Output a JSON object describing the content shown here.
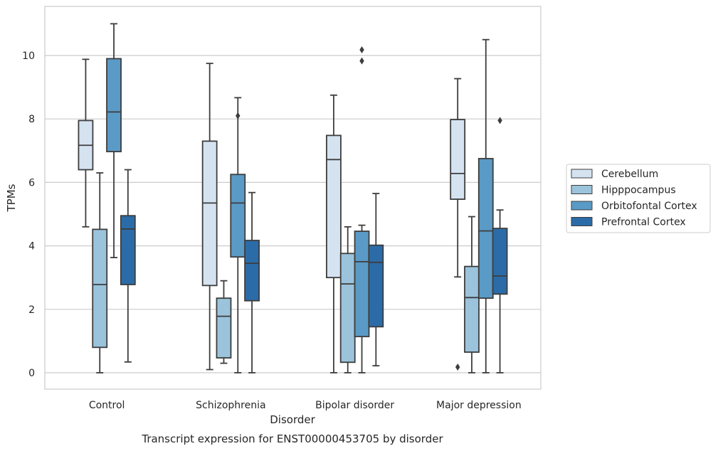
{
  "chart_data": {
    "type": "box",
    "title": "",
    "caption": "Transcript expression for ENST00000453705 by disorder",
    "xlabel": "Disorder",
    "ylabel": "TPMs",
    "ylim": [
      -0.5,
      11.5
    ],
    "yticks": [
      0,
      2,
      4,
      6,
      8,
      10
    ],
    "grid": "horizontal",
    "legend_position": "right",
    "categories": [
      "Control",
      "Schizophrenia",
      "Bipolar disorder",
      "Major depression"
    ],
    "series": [
      {
        "name": "Cerebellum",
        "color": "#d5e3f1",
        "boxes": [
          {
            "whislo": 4.6,
            "q1": 6.4,
            "med": 7.17,
            "q3": 7.95,
            "whishi": 9.88,
            "fliers": []
          },
          {
            "whislo": 0.1,
            "q1": 2.75,
            "med": 5.35,
            "q3": 7.3,
            "whishi": 9.75,
            "fliers": []
          },
          {
            "whislo": 0.0,
            "q1": 3.0,
            "med": 6.72,
            "q3": 7.48,
            "whishi": 8.75,
            "fliers": []
          },
          {
            "whislo": 3.02,
            "q1": 5.47,
            "med": 6.28,
            "q3": 7.98,
            "whishi": 9.27,
            "fliers": [
              0.18
            ]
          }
        ]
      },
      {
        "name": "Hipppocampus",
        "color": "#9bc3dc",
        "boxes": [
          {
            "whislo": 0.0,
            "q1": 0.8,
            "med": 2.78,
            "q3": 4.52,
            "whishi": 6.3,
            "fliers": []
          },
          {
            "whislo": 0.3,
            "q1": 0.47,
            "med": 1.78,
            "q3": 2.35,
            "whishi": 2.9,
            "fliers": []
          },
          {
            "whislo": 0.0,
            "q1": 0.33,
            "med": 2.8,
            "q3": 3.76,
            "whishi": 4.6,
            "fliers": []
          },
          {
            "whislo": 0.0,
            "q1": 0.65,
            "med": 2.37,
            "q3": 3.35,
            "whishi": 4.92,
            "fliers": []
          }
        ]
      },
      {
        "name": "Orbitofontal Cortex",
        "color": "#5a9ac6",
        "boxes": [
          {
            "whislo": 3.63,
            "q1": 6.97,
            "med": 8.22,
            "q3": 9.9,
            "whishi": 11.0,
            "fliers": []
          },
          {
            "whislo": 0.0,
            "q1": 3.65,
            "med": 5.35,
            "q3": 6.25,
            "whishi": 8.67,
            "fliers": [
              8.1
            ]
          },
          {
            "whislo": 0.0,
            "q1": 1.14,
            "med": 3.5,
            "q3": 4.46,
            "whishi": 4.65,
            "fliers": [
              9.83,
              10.18
            ]
          },
          {
            "whislo": 0.0,
            "q1": 2.35,
            "med": 4.47,
            "q3": 6.75,
            "whishi": 10.5,
            "fliers": []
          }
        ]
      },
      {
        "name": "Prefrontal Cortex",
        "color": "#2b6ca8",
        "boxes": [
          {
            "whislo": 0.34,
            "q1": 2.78,
            "med": 4.53,
            "q3": 4.95,
            "whishi": 6.4,
            "fliers": []
          },
          {
            "whislo": 0.0,
            "q1": 2.27,
            "med": 3.45,
            "q3": 4.17,
            "whishi": 5.68,
            "fliers": []
          },
          {
            "whislo": 0.22,
            "q1": 1.45,
            "med": 3.48,
            "q3": 4.02,
            "whishi": 5.65,
            "fliers": []
          },
          {
            "whislo": 0.0,
            "q1": 2.48,
            "med": 3.05,
            "q3": 4.55,
            "whishi": 5.13,
            "fliers": [
              7.95
            ]
          }
        ]
      }
    ]
  }
}
